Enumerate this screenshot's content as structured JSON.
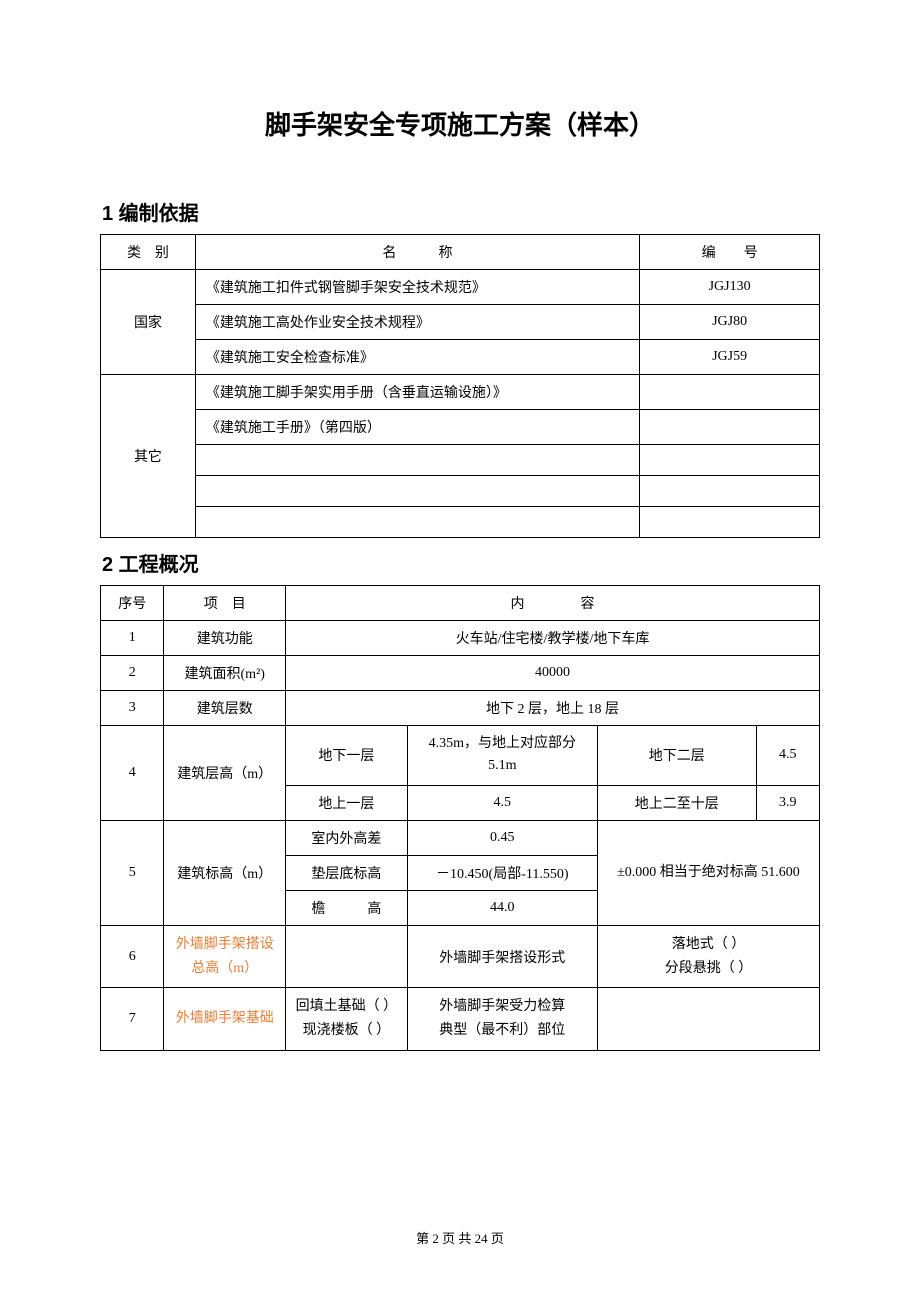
{
  "title": "脚手架安全专项施工方案（样本）",
  "section1": {
    "heading": "1 编制依据",
    "headers": {
      "category": "类　别",
      "name": "名　　　称",
      "code": "编　　号"
    },
    "group1": {
      "category": "国家",
      "rows": [
        {
          "name": "《建筑施工扣件式钢管脚手架安全技术规范》",
          "code": "JGJ130"
        },
        {
          "name": "《建筑施工高处作业安全技术规程》",
          "code": "JGJ80"
        },
        {
          "name": "《建筑施工安全检查标准》",
          "code": "JGJ59"
        }
      ]
    },
    "group2": {
      "category": "其它",
      "rows": [
        {
          "name": "《建筑施工脚手架实用手册（含垂直运输设施）》",
          "code": ""
        },
        {
          "name": "《建筑施工手册》（第四版）",
          "code": ""
        },
        {
          "name": "",
          "code": ""
        },
        {
          "name": "",
          "code": ""
        },
        {
          "name": "",
          "code": ""
        }
      ]
    }
  },
  "section2": {
    "heading": "2 工程概况",
    "headers": {
      "seq": "序号",
      "project": "项　目",
      "content": "内　　　　容"
    },
    "row1": {
      "seq": "1",
      "project": "建筑功能",
      "content": "火车站/住宅楼/教学楼/地下车库"
    },
    "row2": {
      "seq": "2",
      "project": "建筑面积(m²)",
      "content": "40000"
    },
    "row3": {
      "seq": "3",
      "project": "建筑层数",
      "content": "地下 2 层，地上 18 层"
    },
    "row4": {
      "seq": "4",
      "project": "建筑层高（m）",
      "r1c1": "地下一层",
      "r1c2": "4.35m，与地上对应部分 5.1m",
      "r1c3": "地下二层",
      "r1c4": "4.5",
      "r2c1": "地上一层",
      "r2c2": "4.5",
      "r2c3": "地上二至十层",
      "r2c4": "3.9"
    },
    "row5": {
      "seq": "5",
      "project": "建筑标高（m）",
      "r1c1": "室内外高差",
      "r1c2": "0.45",
      "r2c1": "垫层底标高",
      "r2c2": "－10.450(局部-11.550)",
      "r3c1": "檐　　　高",
      "r3c2": "44.0",
      "side": "±0.000 相当于绝对标高 51.600"
    },
    "row6": {
      "seq": "6",
      "project": "外墙脚手架搭设总高（m）",
      "c1": "",
      "c2": "外墙脚手架搭设形式",
      "c3": "落地式（ ）\n分段悬挑（ ）",
      "c3a": "落地式（ ）",
      "c3b": "分段悬挑（ ）"
    },
    "row7": {
      "seq": "7",
      "project": "外墙脚手架基础",
      "c1a": "回填土基础（ ）",
      "c1b": "现浇楼板（ ）",
      "c2a": "外墙脚手架受力检算",
      "c2b": "典型（最不利）部位",
      "c3": ""
    }
  },
  "footer": "第 2 页 共 24 页",
  "colors": {
    "orange": "#ed7d31",
    "text": "#000000",
    "background": "#ffffff",
    "border": "#000000"
  }
}
